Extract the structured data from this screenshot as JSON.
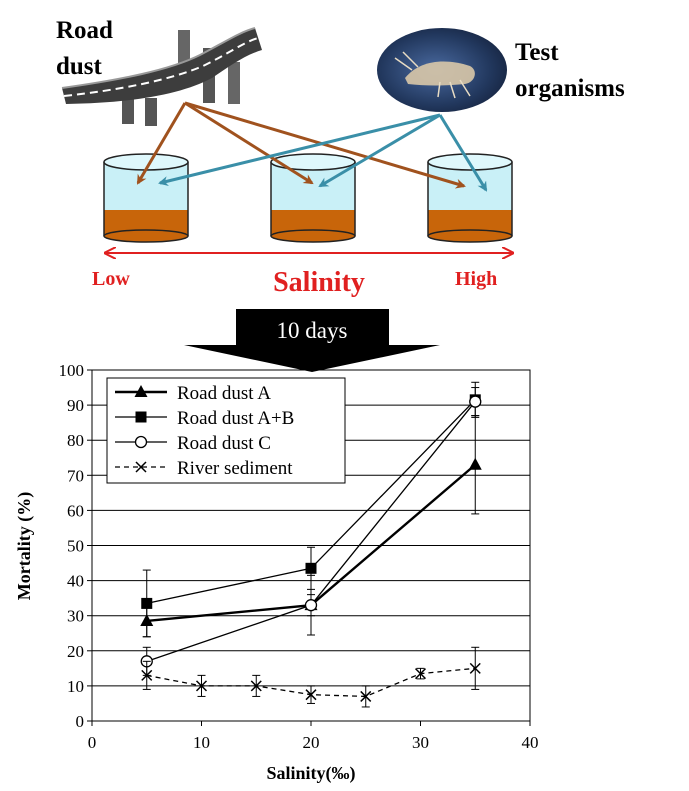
{
  "schematic": {
    "road_dust_label": [
      "Road",
      "dust"
    ],
    "test_organisms_label": [
      "Test",
      "organisms"
    ],
    "salinity_label": "Salinity",
    "low_label": "Low",
    "high_label": "High",
    "duration_label": "10 days",
    "colors": {
      "road_dust_arrow": "#a0521e",
      "organism_arrow": "#3a8fa8",
      "salinity_arrow": "#e02020",
      "sediment": "#c8650a",
      "water": "#c9f0f7"
    }
  },
  "chart_data": {
    "type": "line",
    "xlabel": "Salinity(‰)",
    "ylabel": "Mortality (%)",
    "xlim": [
      0,
      40
    ],
    "ylim": [
      0,
      100
    ],
    "xticks": [
      0,
      10,
      20,
      30,
      40
    ],
    "yticks": [
      0,
      10,
      20,
      30,
      40,
      50,
      60,
      70,
      80,
      90,
      100
    ],
    "grid": "horizontal",
    "legend_position": "top-left",
    "series": [
      {
        "name": "Road dust A",
        "marker": "triangle",
        "line": "solid-thick",
        "points": [
          {
            "x": 5,
            "y": 28.5,
            "err": 4.5
          },
          {
            "x": 20,
            "y": 33,
            "err": 3
          },
          {
            "x": 35,
            "y": 73,
            "err": 14
          }
        ]
      },
      {
        "name": "Road dust A+B",
        "marker": "square",
        "line": "solid",
        "points": [
          {
            "x": 5,
            "y": 33.5,
            "err": 9.5
          },
          {
            "x": 20,
            "y": 43.5,
            "err": 6
          },
          {
            "x": 35,
            "y": 91.5,
            "err": 5
          }
        ]
      },
      {
        "name": "Road dust C",
        "marker": "circle",
        "line": "solid",
        "points": [
          {
            "x": 5,
            "y": 17,
            "err": 4
          },
          {
            "x": 20,
            "y": 33,
            "err": 8.5
          },
          {
            "x": 35,
            "y": 91,
            "err": 4
          }
        ]
      },
      {
        "name": "River sediment",
        "marker": "x",
        "line": "dashed",
        "points": [
          {
            "x": 5,
            "y": 13,
            "err": 4
          },
          {
            "x": 10,
            "y": 10,
            "err": 3
          },
          {
            "x": 15,
            "y": 10,
            "err": 3
          },
          {
            "x": 20,
            "y": 7.5,
            "err": 2.5
          },
          {
            "x": 25,
            "y": 7,
            "err": 3
          },
          {
            "x": 30,
            "y": 13.5,
            "err": 1.5
          },
          {
            "x": 35,
            "y": 15,
            "err": 6
          }
        ]
      }
    ]
  }
}
